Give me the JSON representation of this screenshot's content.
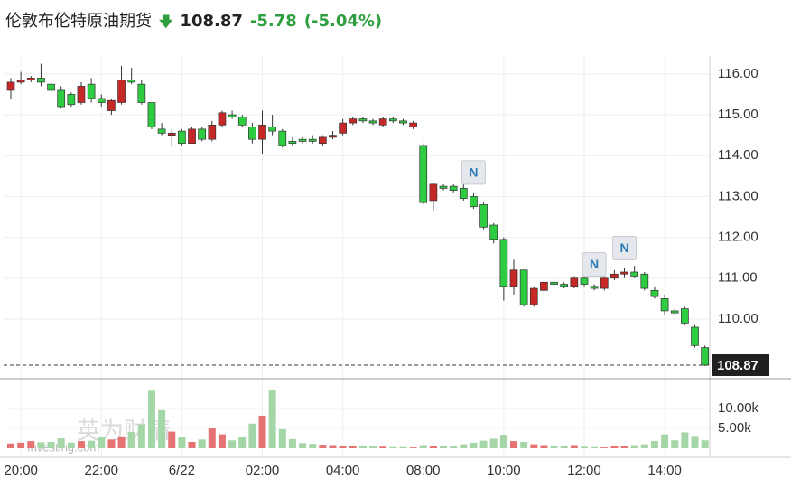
{
  "header": {
    "title": "伦敦布伦特原油期货",
    "price": "108.87",
    "change": "-5.78",
    "change_pct": "(-5.04%)"
  },
  "watermark": [
    "英为财情",
    "Investing.com"
  ],
  "chart_data": {
    "type": "candlestick",
    "categories": [
      null,
      "20:00",
      null,
      null,
      null,
      null,
      null,
      null,
      null,
      "22:00",
      null,
      null,
      null,
      null,
      null,
      null,
      null,
      "6/22",
      null,
      null,
      null,
      null,
      null,
      null,
      null,
      "02:00",
      null,
      null,
      null,
      null,
      null,
      null,
      null,
      "04:00",
      null,
      null,
      null,
      null,
      null,
      null,
      null,
      "08:00",
      null,
      null,
      null,
      null,
      null,
      null,
      null,
      "10:00",
      null,
      null,
      null,
      null,
      null,
      null,
      null,
      "12:00",
      null,
      null,
      null,
      null,
      null,
      null,
      null,
      "14:00",
      null,
      null,
      null,
      null
    ],
    "open": [
      115.6,
      115.8,
      115.85,
      115.9,
      115.75,
      115.6,
      115.5,
      115.3,
      115.75,
      115.4,
      115.1,
      115.3,
      115.85,
      115.75,
      115.3,
      114.65,
      114.5,
      114.6,
      114.3,
      114.65,
      114.4,
      114.75,
      115.0,
      114.95,
      114.7,
      114.4,
      114.7,
      114.6,
      114.35,
      114.4,
      114.4,
      114.3,
      114.45,
      114.55,
      114.8,
      114.9,
      114.85,
      114.75,
      114.9,
      114.85,
      114.7,
      114.25,
      112.9,
      113.25,
      113.25,
      113.2,
      113.0,
      112.8,
      112.3,
      111.95,
      110.8,
      111.2,
      110.35,
      110.7,
      110.9,
      110.85,
      110.8,
      111.0,
      110.8,
      110.75,
      111.0,
      111.1,
      111.15,
      111.1,
      110.7,
      110.5,
      110.2,
      110.25,
      109.8,
      109.3
    ],
    "close": [
      115.8,
      115.85,
      115.9,
      115.8,
      115.6,
      115.2,
      115.25,
      115.7,
      115.4,
      115.3,
      115.35,
      115.85,
      115.8,
      115.3,
      114.7,
      114.55,
      114.55,
      114.3,
      114.65,
      114.4,
      114.75,
      115.05,
      114.95,
      114.75,
      114.4,
      114.75,
      114.6,
      114.25,
      114.3,
      114.35,
      114.35,
      114.45,
      114.5,
      114.8,
      114.9,
      114.85,
      114.8,
      114.9,
      114.85,
      114.8,
      114.8,
      112.85,
      113.3,
      113.2,
      113.15,
      112.95,
      112.75,
      112.25,
      111.95,
      110.8,
      111.2,
      110.35,
      110.75,
      110.9,
      110.85,
      110.8,
      111.0,
      110.85,
      110.75,
      111.0,
      111.1,
      111.15,
      111.05,
      110.75,
      110.55,
      110.2,
      110.15,
      109.9,
      109.35,
      108.87
    ],
    "high": [
      115.9,
      116.05,
      115.95,
      116.25,
      115.8,
      115.7,
      115.55,
      115.8,
      115.9,
      115.5,
      115.4,
      116.2,
      116.15,
      115.85,
      115.3,
      114.8,
      114.65,
      114.65,
      114.7,
      114.7,
      114.85,
      115.1,
      115.1,
      115.0,
      114.8,
      115.1,
      115.0,
      114.65,
      114.45,
      114.45,
      114.5,
      114.5,
      114.6,
      114.9,
      114.95,
      114.95,
      114.9,
      114.95,
      114.95,
      114.9,
      114.85,
      114.3,
      113.35,
      113.3,
      113.3,
      113.35,
      113.1,
      112.85,
      112.35,
      112.0,
      111.45,
      111.2,
      110.8,
      110.95,
      111.0,
      110.9,
      111.05,
      111.1,
      110.85,
      111.05,
      111.2,
      111.25,
      111.3,
      111.15,
      110.8,
      110.6,
      110.25,
      110.3,
      109.85,
      109.35
    ],
    "low": [
      115.4,
      115.75,
      115.8,
      115.7,
      115.5,
      115.15,
      115.2,
      115.25,
      115.3,
      115.2,
      115.0,
      115.25,
      115.75,
      115.25,
      114.65,
      114.5,
      114.25,
      114.25,
      114.3,
      114.35,
      114.35,
      114.7,
      114.9,
      114.7,
      114.3,
      114.05,
      114.5,
      114.2,
      114.25,
      114.3,
      114.3,
      114.25,
      114.4,
      114.5,
      114.75,
      114.8,
      114.75,
      114.7,
      114.8,
      114.75,
      114.65,
      112.8,
      112.65,
      113.15,
      113.1,
      112.9,
      112.7,
      112.2,
      111.85,
      110.45,
      110.6,
      110.3,
      110.3,
      110.6,
      110.8,
      110.75,
      110.75,
      110.8,
      110.7,
      110.7,
      110.95,
      111.0,
      111.0,
      110.7,
      110.5,
      110.1,
      110.1,
      109.85,
      109.3,
      108.85
    ],
    "up_color": "#c62828",
    "down_color": "#2ecc40",
    "ylim": [
      108.56,
      116.44
    ],
    "yticks": [
      {
        "value": 110,
        "label": "110.00"
      },
      {
        "value": 111,
        "label": "111.00"
      },
      {
        "value": 112,
        "label": "112.00"
      },
      {
        "value": 113,
        "label": "113.00"
      },
      {
        "value": 114,
        "label": "114.00"
      },
      {
        "value": 115,
        "label": "115.00"
      },
      {
        "value": 116,
        "label": "116.00"
      }
    ],
    "last_price": 108.87,
    "grid": true,
    "news_markers": [
      {
        "label": "N",
        "candle": 46
      },
      {
        "label": "N",
        "candle": 58
      },
      {
        "label": "N",
        "candle": 61
      }
    ],
    "volume": {
      "values": [
        1.2,
        1.4,
        1.8,
        1.5,
        1.6,
        2.5,
        1.4,
        1.8,
        1.9,
        2.8,
        2.2,
        3.0,
        4.1,
        6.0,
        14.5,
        9.6,
        4.2,
        2.8,
        1.6,
        2.2,
        5.2,
        3.5,
        2.0,
        2.8,
        6.2,
        8.2,
        14.8,
        4.8,
        2.3,
        1.3,
        1.1,
        0.9,
        0.8,
        0.6,
        0.5,
        0.7,
        0.6,
        0.4,
        0.3,
        0.3,
        0.2,
        0.8,
        0.6,
        0.5,
        0.6,
        1.0,
        1.4,
        1.9,
        2.4,
        3.4,
        1.8,
        1.6,
        1.0,
        0.8,
        0.7,
        0.5,
        0.8,
        0.4,
        0.3,
        0.2,
        0.5,
        0.6,
        0.8,
        1.0,
        1.8,
        3.5,
        2.0,
        4.0,
        3.1,
        2.0
      ],
      "up_color": "#e57373",
      "down_color": "#a5d6a7",
      "ylim": [
        0,
        17.3
      ],
      "yticks": [
        {
          "value": 5,
          "label": "5.00k"
        },
        {
          "value": 10,
          "label": "10.00k"
        }
      ]
    }
  }
}
